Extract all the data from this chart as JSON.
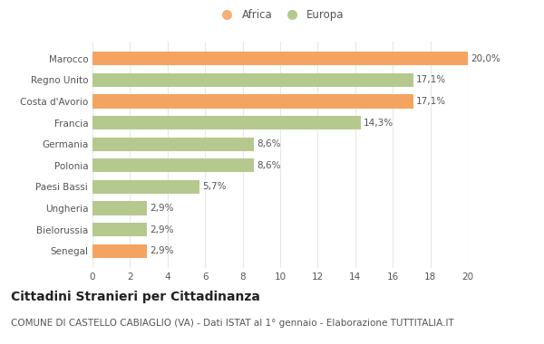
{
  "categories": [
    "Marocco",
    "Regno Unito",
    "Costa d'Avorio",
    "Francia",
    "Germania",
    "Polonia",
    "Paesi Bassi",
    "Ungheria",
    "Bielorussia",
    "Senegal"
  ],
  "values": [
    20.0,
    17.1,
    17.1,
    14.3,
    8.6,
    8.6,
    5.7,
    2.9,
    2.9,
    2.9
  ],
  "labels": [
    "20,0%",
    "17,1%",
    "17,1%",
    "14,3%",
    "8,6%",
    "8,6%",
    "5,7%",
    "2,9%",
    "2,9%",
    "2,9%"
  ],
  "colors": [
    "#f4a460",
    "#b5c98e",
    "#f4a460",
    "#b5c98e",
    "#b5c98e",
    "#b5c98e",
    "#b5c98e",
    "#b5c98e",
    "#b5c98e",
    "#f4a460"
  ],
  "continent": [
    "Africa",
    "Europa",
    "Africa",
    "Europa",
    "Europa",
    "Europa",
    "Europa",
    "Europa",
    "Europa",
    "Africa"
  ],
  "africa_color": "#f5b07a",
  "europa_color": "#b5c98e",
  "xlim": [
    0,
    20
  ],
  "xticks": [
    0,
    2,
    4,
    6,
    8,
    10,
    12,
    14,
    16,
    18,
    20
  ],
  "title": "Cittadini Stranieri per Cittadinanza",
  "subtitle": "COMUNE DI CASTELLO CABIAGLIO (VA) - Dati ISTAT al 1° gennaio - Elaborazione TUTTITALIA.IT",
  "background_color": "#ffffff",
  "plot_bg_color": "#ffffff",
  "grid_color": "#e8e8e8",
  "bar_height": 0.65,
  "title_fontsize": 10,
  "subtitle_fontsize": 7.5,
  "label_fontsize": 7.5,
  "tick_fontsize": 7.5,
  "legend_fontsize": 8.5
}
